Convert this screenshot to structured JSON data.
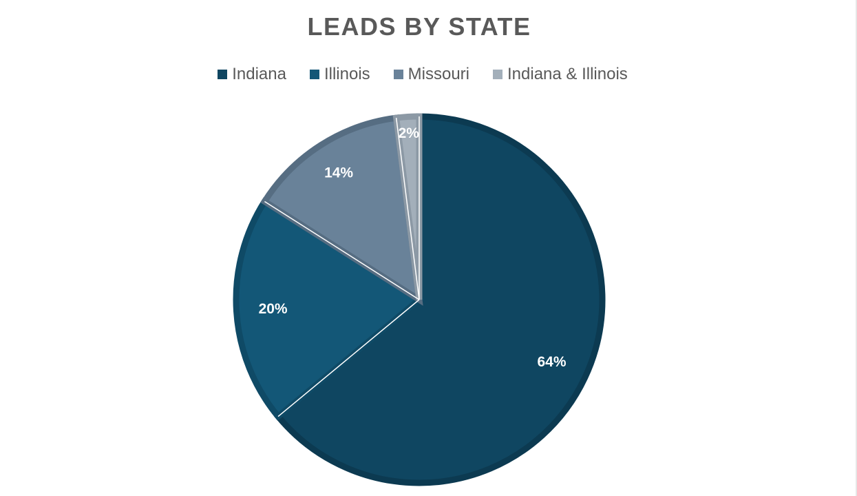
{
  "chart_data": {
    "type": "pie",
    "title": "LEADS BY STATE",
    "legend_position": "top",
    "categories": [
      "Indiana",
      "Illinois",
      "Missouri",
      "Indiana & Illinois"
    ],
    "values": [
      64,
      20,
      14,
      2
    ],
    "data_labels": [
      "64%",
      "20%",
      "14%",
      "2%"
    ],
    "colors": [
      "#0f4661",
      "#135777",
      "#698299",
      "#a3afba"
    ],
    "edge_colors": [
      "#0c3a51",
      "#0f4a66",
      "#566d82",
      "#8c99a5"
    ]
  }
}
